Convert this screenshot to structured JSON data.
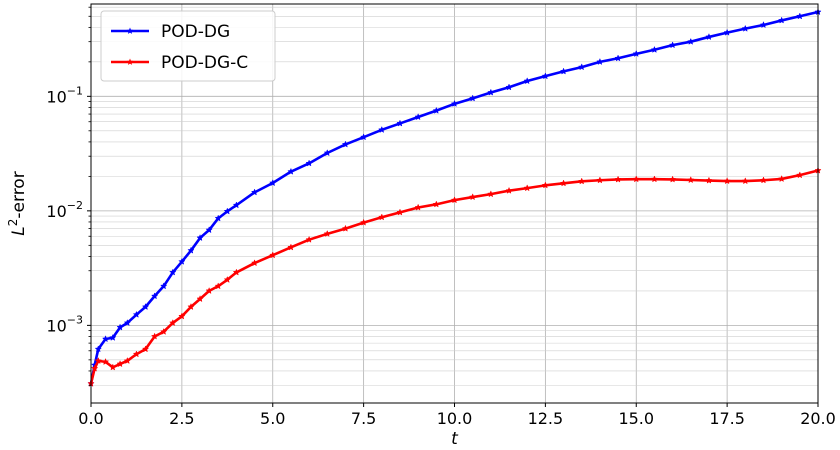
{
  "chart_data": {
    "type": "line",
    "title": "",
    "xlabel": "t",
    "ylabel_base": "L",
    "ylabel_sup": "2",
    "ylabel_rest": "-error",
    "xlim": [
      0,
      20
    ],
    "ylim": [
      0.00021,
      0.64
    ],
    "yscale": "log",
    "grid": true,
    "legend_position": "top-left",
    "x_ticks": [
      0,
      2.5,
      5,
      7.5,
      10,
      12.5,
      15,
      17.5,
      20
    ],
    "x_tick_labels": [
      "0.0",
      "2.5",
      "5.0",
      "7.5",
      "10.0",
      "12.5",
      "15.0",
      "17.5",
      "20.0"
    ],
    "y_ticks": [
      {
        "value": 0.001,
        "base": "10",
        "exp": "−3"
      },
      {
        "value": 0.01,
        "base": "10",
        "exp": "−2"
      },
      {
        "value": 0.1,
        "base": "10",
        "exp": "−1"
      }
    ],
    "series": [
      {
        "name": "POD-DG",
        "color": "#0000ff",
        "marker": "star",
        "points": [
          [
            0,
            0.00031
          ],
          [
            0.1,
            0.00045
          ],
          [
            0.2,
            0.00062
          ],
          [
            0.4,
            0.00076
          ],
          [
            0.6,
            0.00078
          ],
          [
            0.8,
            0.00096
          ],
          [
            1.0,
            0.00105
          ],
          [
            1.25,
            0.00124
          ],
          [
            1.5,
            0.00145
          ],
          [
            1.75,
            0.0018
          ],
          [
            2.0,
            0.0022
          ],
          [
            2.25,
            0.0029
          ],
          [
            2.5,
            0.0036
          ],
          [
            2.75,
            0.0045
          ],
          [
            3.0,
            0.0058
          ],
          [
            3.25,
            0.0068
          ],
          [
            3.5,
            0.0086
          ],
          [
            3.75,
            0.0099
          ],
          [
            4.0,
            0.0112
          ],
          [
            4.5,
            0.0145
          ],
          [
            5.0,
            0.0175
          ],
          [
            5.5,
            0.022
          ],
          [
            6.0,
            0.026
          ],
          [
            6.5,
            0.032
          ],
          [
            7.0,
            0.038
          ],
          [
            7.5,
            0.044
          ],
          [
            8.0,
            0.051
          ],
          [
            8.5,
            0.058
          ],
          [
            9.0,
            0.066
          ],
          [
            9.5,
            0.075
          ],
          [
            10.0,
            0.086
          ],
          [
            10.5,
            0.096
          ],
          [
            11.0,
            0.108
          ],
          [
            11.5,
            0.12
          ],
          [
            12.0,
            0.136
          ],
          [
            12.5,
            0.15
          ],
          [
            13.0,
            0.165
          ],
          [
            13.5,
            0.18
          ],
          [
            14.0,
            0.2
          ],
          [
            14.5,
            0.215
          ],
          [
            15.0,
            0.235
          ],
          [
            15.5,
            0.255
          ],
          [
            16.0,
            0.28
          ],
          [
            16.5,
            0.3
          ],
          [
            17.0,
            0.33
          ],
          [
            17.5,
            0.36
          ],
          [
            18.0,
            0.39
          ],
          [
            18.5,
            0.42
          ],
          [
            19.0,
            0.46
          ],
          [
            19.5,
            0.5
          ],
          [
            20.0,
            0.545
          ]
        ]
      },
      {
        "name": "POD-DG-C",
        "color": "#ff0000",
        "marker": "star",
        "points": [
          [
            0,
            0.00031
          ],
          [
            0.1,
            0.00042
          ],
          [
            0.2,
            0.00049
          ],
          [
            0.4,
            0.00048
          ],
          [
            0.6,
            0.00043
          ],
          [
            0.8,
            0.00046
          ],
          [
            1.0,
            0.00049
          ],
          [
            1.25,
            0.00056
          ],
          [
            1.5,
            0.00062
          ],
          [
            1.75,
            0.0008
          ],
          [
            2.0,
            0.00088
          ],
          [
            2.25,
            0.00105
          ],
          [
            2.5,
            0.0012
          ],
          [
            2.75,
            0.00145
          ],
          [
            3.0,
            0.0017
          ],
          [
            3.25,
            0.002
          ],
          [
            3.5,
            0.0022
          ],
          [
            3.75,
            0.0025
          ],
          [
            4.0,
            0.0029
          ],
          [
            4.5,
            0.0035
          ],
          [
            5.0,
            0.0041
          ],
          [
            5.5,
            0.0048
          ],
          [
            6.0,
            0.0056
          ],
          [
            6.5,
            0.0063
          ],
          [
            7.0,
            0.007
          ],
          [
            7.5,
            0.0079
          ],
          [
            8.0,
            0.0088
          ],
          [
            8.5,
            0.0097
          ],
          [
            9.0,
            0.0107
          ],
          [
            9.5,
            0.0114
          ],
          [
            10.0,
            0.0124
          ],
          [
            10.5,
            0.0132
          ],
          [
            11.0,
            0.014
          ],
          [
            11.5,
            0.015
          ],
          [
            12.0,
            0.0158
          ],
          [
            12.5,
            0.0167
          ],
          [
            13.0,
            0.0174
          ],
          [
            13.5,
            0.0181
          ],
          [
            14.0,
            0.0185
          ],
          [
            14.5,
            0.0188
          ],
          [
            15.0,
            0.0189
          ],
          [
            15.5,
            0.0189
          ],
          [
            16.0,
            0.0188
          ],
          [
            16.5,
            0.0186
          ],
          [
            17.0,
            0.0184
          ],
          [
            17.5,
            0.0182
          ],
          [
            18.0,
            0.0182
          ],
          [
            18.5,
            0.0185
          ],
          [
            19.0,
            0.019
          ],
          [
            19.5,
            0.0205
          ],
          [
            20.0,
            0.0225
          ]
        ]
      }
    ]
  }
}
